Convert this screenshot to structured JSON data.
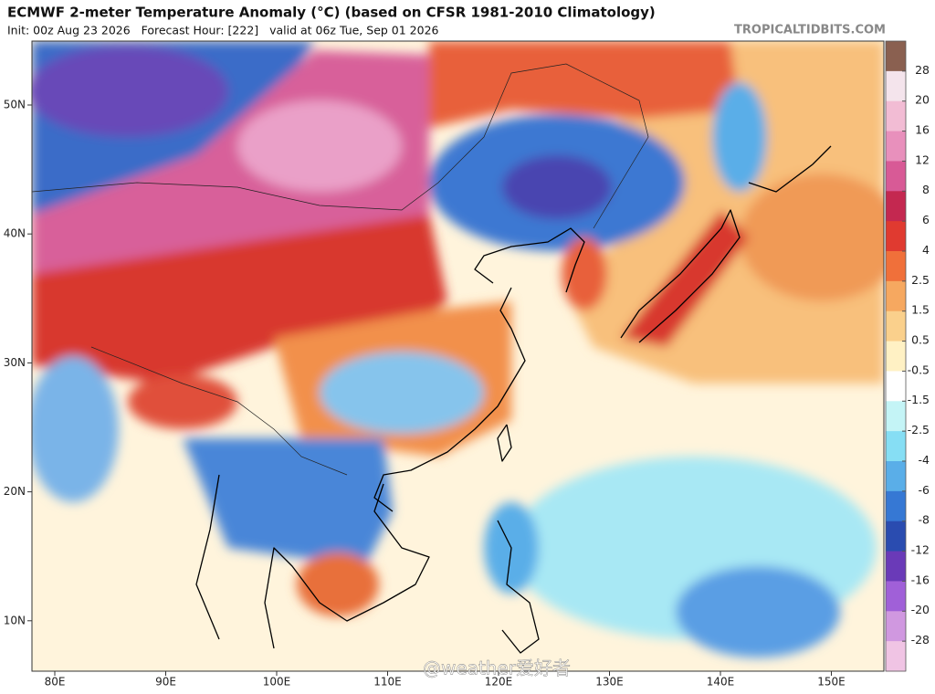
{
  "header": {
    "title": "ECMWF 2-meter Temperature Anomaly (°C) (based on CFSR 1981-2010 Climatology)",
    "subtitle": "Init: 00z Aug 23 2026   Forecast Hour: [222]   valid at 06z Tue, Sep 01 2026",
    "site": "TROPICALTIDBITS.COM"
  },
  "map": {
    "lat_labels": [
      "50N",
      "40N",
      "30N",
      "20N",
      "10N"
    ],
    "lon_labels": [
      "80E",
      "90E",
      "100E",
      "110E",
      "120E",
      "130E",
      "140E",
      "150E"
    ]
  },
  "colorbar": {
    "ticks": [
      28,
      20,
      16,
      12,
      8,
      6,
      4,
      2.5,
      1.5,
      0.5,
      -0.5,
      -1.5,
      -2.5,
      -4,
      -6,
      -8,
      -12,
      -16,
      -20,
      -28
    ],
    "colors": [
      "#8a6050",
      "#f4e4ec",
      "#f2bcd4",
      "#e890bc",
      "#d85a96",
      "#c42850",
      "#e03a30",
      "#f0703a",
      "#f6a860",
      "#fad08c",
      "#fff1c4",
      "#ffffff",
      "#c4f4f6",
      "#86def4",
      "#5aaee8",
      "#3678d4",
      "#2a4cb0",
      "#6a3ab8",
      "#a060d8",
      "#d098e0",
      "#f0c4e4"
    ]
  },
  "watermark": "@weather爱好者"
}
